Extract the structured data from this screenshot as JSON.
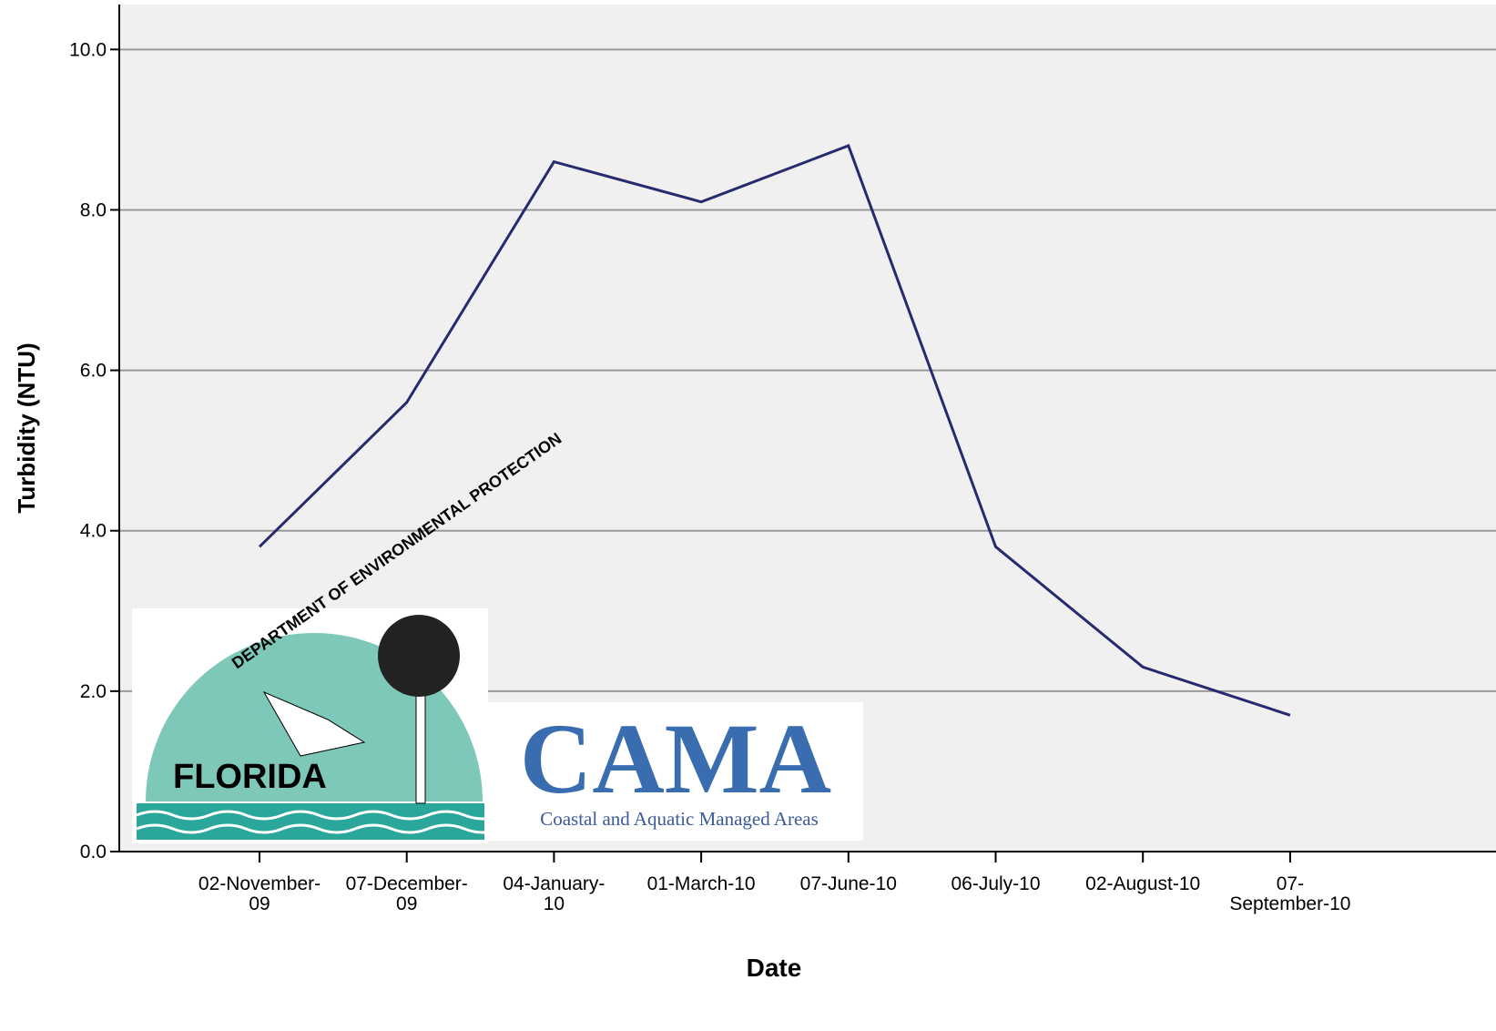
{
  "chart_data": {
    "type": "line",
    "x_label": "Date",
    "y_label": "Turbidity (NTU)",
    "categories": [
      "02-November-09",
      "07-December-09",
      "04-January-10",
      "01-March-10",
      "07-June-10",
      "06-July-10",
      "02-August-10",
      "07-September-10"
    ],
    "series": [
      {
        "name": "Turbidity",
        "color": "#262a6e",
        "values": [
          3.8,
          5.6,
          8.6,
          8.1,
          8.8,
          3.8,
          2.3,
          1.7
        ]
      }
    ],
    "ylim": [
      0,
      10.56
    ],
    "yticks": [
      {
        "value": 0,
        "label": "0.0"
      },
      {
        "value": 2,
        "label": "2.0"
      },
      {
        "value": 4,
        "label": "4.0"
      },
      {
        "value": 6,
        "label": "6.0"
      },
      {
        "value": 8,
        "label": "8.0"
      },
      {
        "value": 10,
        "label": "10.0"
      }
    ],
    "grid": true,
    "annotations": [
      "DEPARTMENT OF ENVIRONMENTAL PROTECTION",
      "FLORIDA",
      "CAMA",
      "Coastal and Aquatic Managed Areas"
    ]
  }
}
